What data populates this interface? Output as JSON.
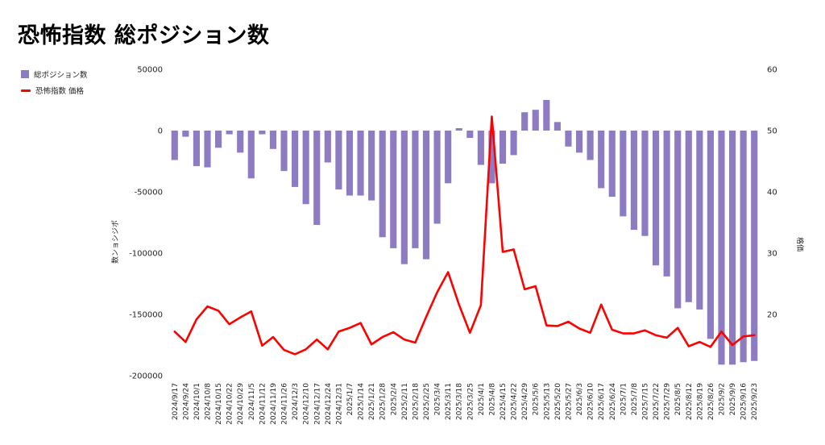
{
  "chart_data": {
    "type": "bar+line",
    "title": "恐怖指数 総ポジション数",
    "legend": [
      {
        "name": "総ポジション数",
        "color": "#8e7cc3",
        "kind": "bar"
      },
      {
        "name": "恐怖指数 価格",
        "color": "#ff0000",
        "kind": "line"
      }
    ],
    "ylabel_left": "数ンョシジポ",
    "ylabel_right": "格価",
    "y_left": {
      "min": -200000,
      "max": 50000,
      "ticks": [
        50000,
        0,
        -50000,
        -100000,
        -150000,
        -200000
      ]
    },
    "y_right": {
      "min": 10,
      "max": 60,
      "ticks": [
        60,
        50,
        40,
        30,
        20
      ]
    },
    "categories": [
      "2024/9/17",
      "2024/9/24",
      "2024/10/1",
      "2024/10/8",
      "2024/10/15",
      "2024/10/22",
      "2024/10/29",
      "2024/11/5",
      "2024/11/12",
      "2024/11/19",
      "2024/11/26",
      "2024/12/3",
      "2024/12/10",
      "2024/12/17",
      "2024/12/24",
      "2024/12/31",
      "2025/1/7",
      "2025/1/14",
      "2025/1/21",
      "2025/1/28",
      "2025/2/4",
      "2025/2/11",
      "2025/2/18",
      "2025/2/25",
      "2025/3/4",
      "2025/3/11",
      "2025/3/18",
      "2025/3/25",
      "2025/4/1",
      "2025/4/8",
      "2025/4/15",
      "2025/4/22",
      "2025/4/29",
      "2025/5/6",
      "2025/5/13",
      "2025/5/20",
      "2025/5/27",
      "2025/6/3",
      "2025/6/10",
      "2025/6/17",
      "2025/6/24",
      "2025/7/1",
      "2025/7/8",
      "2025/7/15",
      "2025/7/22",
      "2025/7/29",
      "2025/8/5",
      "2025/8/12",
      "2025/8/19",
      "2025/8/26",
      "2025/9/2",
      "2025/9/9",
      "2025/9/16",
      "2025/9/23"
    ],
    "x_ticks_shown": [
      "2024/9/17",
      "2024/9/24",
      "2024/10/1",
      "2024/10/8",
      "2024/10/15",
      "2024/10/22",
      "2024/10/29",
      "2024/11/5",
      "2024/11/12",
      "2024/11/19",
      "2024/11/26",
      "2024/12/3",
      "2024/12/10",
      "2024/12/17",
      "2024/12/24",
      "2024/12/31",
      "2025/1/7",
      "2025/1/14",
      "2025/1/21",
      "2025/1/28",
      "2025/2/4",
      "2025/2/11",
      "2025/2/18",
      "2025/2/25",
      "2025/3/4",
      "2025/3/11",
      "2025/3/18",
      "2025/3/25",
      "2025/4/1",
      "2025/4/8",
      "2025/4/15",
      "2025/4/22",
      "2025/4/29",
      "2025/5/6",
      "2025/5/13",
      "2025/5/20",
      "2025/5/27",
      "2025/6/3",
      "2025/6/10",
      "2025/6/17",
      "2025/6/24",
      "2025/7/1",
      "2025/7/8",
      "2025/7/15",
      "2025/7/22",
      "2025/7/29",
      "2025/8/5",
      "2025/8/12",
      "2025/8/19",
      "2025/8/26",
      "2025/9/2",
      "2025/9/9",
      "2025/9/16",
      "2025/9/23"
    ],
    "series": [
      {
        "name": "総ポジション数",
        "type": "bar",
        "axis": "left",
        "values": [
          -24000,
          -5000,
          -29000,
          -30000,
          -14000,
          -3000,
          -18000,
          -39000,
          -3000,
          -15000,
          -33000,
          -46000,
          -60000,
          -77000,
          -26000,
          -48000,
          -53000,
          -53000,
          -57000,
          -87000,
          -96000,
          -109000,
          -96000,
          -105000,
          -76000,
          -43000,
          2000,
          -6000,
          -28000,
          -43000,
          -27000,
          -20000,
          15000,
          17000,
          25000,
          7000,
          -13000,
          -18000,
          -24000,
          -47000,
          -54000,
          -70000,
          -81000,
          -86000,
          -110000,
          -119000,
          -145000,
          -140000,
          -146000,
          -170000,
          -191000,
          -191000,
          -189000,
          -188000
        ]
      },
      {
        "name": "恐怖指数 価格",
        "type": "line",
        "axis": "right",
        "values": [
          17.2,
          15.5,
          19.2,
          21.3,
          20.6,
          18.4,
          19.5,
          20.5,
          14.9,
          16.3,
          14.2,
          13.5,
          14.3,
          15.9,
          14.3,
          17.2,
          17.8,
          18.6,
          15.1,
          16.3,
          17.1,
          15.9,
          15.4,
          19.6,
          23.6,
          26.9,
          21.6,
          17.0,
          21.5,
          52.3,
          30.2,
          30.6,
          24.1,
          24.6,
          18.2,
          18.1,
          18.8,
          17.7,
          17.0,
          21.6,
          17.5,
          16.9,
          16.9,
          17.4,
          16.6,
          16.2,
          17.8,
          14.8,
          15.5,
          14.7,
          17.2,
          15.0,
          16.4,
          16.6
        ]
      }
    ]
  }
}
